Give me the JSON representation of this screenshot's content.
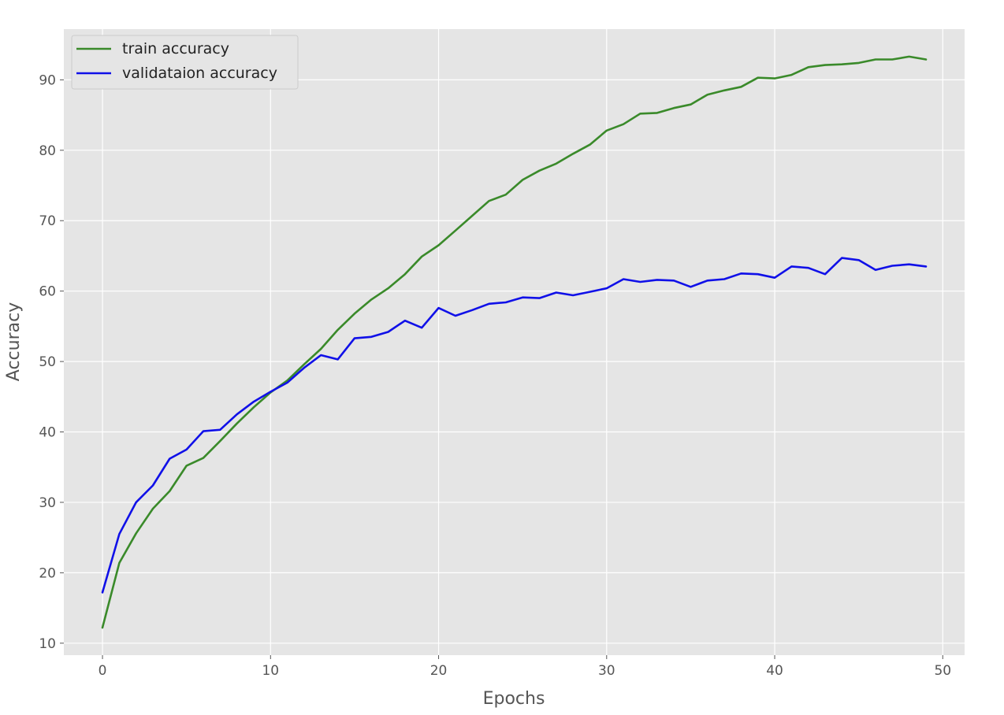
{
  "chart_data": {
    "type": "line",
    "title": "",
    "xlabel": "Epochs",
    "ylabel": "Accuracy",
    "xlim": [
      -2.3,
      51.3
    ],
    "ylim": [
      8.3,
      97.2
    ],
    "xticks": [
      0,
      10,
      20,
      30,
      40,
      50
    ],
    "yticks": [
      10,
      20,
      30,
      40,
      50,
      60,
      70,
      80,
      90
    ],
    "grid": true,
    "legend_position": "top-left",
    "background": "#e5e5e5",
    "x": [
      0,
      1,
      2,
      3,
      4,
      5,
      6,
      7,
      8,
      9,
      10,
      11,
      12,
      13,
      14,
      15,
      16,
      17,
      18,
      19,
      20,
      21,
      22,
      23,
      24,
      25,
      26,
      27,
      28,
      29,
      30,
      31,
      32,
      33,
      34,
      35,
      36,
      37,
      38,
      39,
      40,
      41,
      42,
      43,
      44,
      45,
      46,
      47,
      48,
      49
    ],
    "series": [
      {
        "name": "train accuracy",
        "color": "#3a8a2a",
        "values": [
          12.2,
          21.4,
          25.6,
          29.1,
          31.6,
          35.2,
          36.3,
          38.7,
          41.2,
          43.5,
          45.6,
          47.3,
          49.6,
          51.8,
          54.5,
          56.8,
          58.8,
          60.4,
          62.4,
          64.9,
          66.5,
          68.6,
          70.7,
          72.8,
          73.7,
          75.8,
          77.1,
          78.1,
          79.5,
          80.8,
          82.8,
          83.7,
          85.2,
          85.3,
          86.0,
          86.5,
          87.9,
          88.5,
          89.0,
          90.3,
          90.2,
          90.7,
          91.8,
          92.1,
          92.2,
          92.4,
          92.9,
          92.9,
          93.3,
          92.9
        ]
      },
      {
        "name": "validataion accuracy",
        "color": "#1010e8",
        "values": [
          17.2,
          25.5,
          30.0,
          32.4,
          36.2,
          37.5,
          40.1,
          40.3,
          42.5,
          44.3,
          45.7,
          47.0,
          49.1,
          50.9,
          50.3,
          53.3,
          53.5,
          54.2,
          55.8,
          54.8,
          57.6,
          56.5,
          57.3,
          58.2,
          58.4,
          59.1,
          59.0,
          59.8,
          59.4,
          59.9,
          60.4,
          61.7,
          61.3,
          61.6,
          61.5,
          60.6,
          61.5,
          61.7,
          62.5,
          62.4,
          61.9,
          63.5,
          63.3,
          62.4,
          64.7,
          64.4,
          63.0,
          63.6,
          63.8,
          63.5
        ]
      }
    ]
  }
}
